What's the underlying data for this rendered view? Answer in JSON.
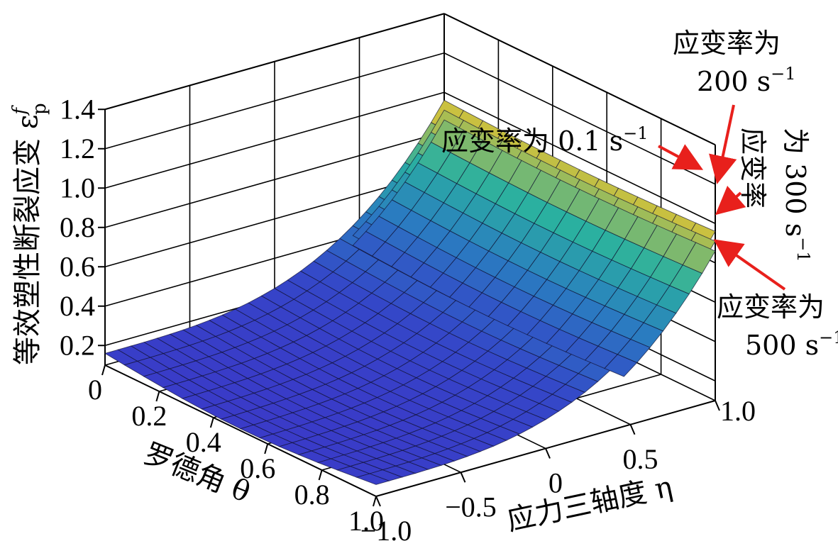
{
  "chart_data": {
    "type": "surface",
    "zlabel_main": "等效塑性断裂应变 ε",
    "zlabel_sup": "f",
    "zlabel_sub": "p",
    "xlabel": "应力三轴度 η",
    "ylabel": "罗德角 θ",
    "zticks": [
      "0.2",
      "0.4",
      "0.6",
      "0.8",
      "1.0",
      "1.2",
      "1.4"
    ],
    "eta_ticks": [
      "−1.0",
      "−0.5",
      "0",
      "0.5",
      "1.0"
    ],
    "theta_ticks": [
      "0",
      "0.2",
      "0.4",
      "0.6",
      "0.8",
      "1.0"
    ],
    "eta_range": [
      -1.0,
      1.0
    ],
    "theta_range": [
      0,
      1.0
    ],
    "z_range": [
      0.1,
      1.4
    ],
    "annotations": {
      "rate_01": "应变率为 0.1 s",
      "rate_01_sup": "−1",
      "rate_200_line1": "应变率为",
      "rate_200_line2": "200 s",
      "rate_200_sup": "−1",
      "rate_300_line1": "应变率",
      "rate_300_line2": "为 300 s",
      "rate_300_sup": "−1",
      "rate_500_line1": "应变率为",
      "rate_500_line2": "500 s",
      "rate_500_sup": "−1"
    },
    "colors": {
      "surface_low": "#3a3ac8",
      "surface_mid": "#2ab0b0",
      "surface_high": "#e8d24a",
      "arrow": "#e8201c"
    }
  }
}
